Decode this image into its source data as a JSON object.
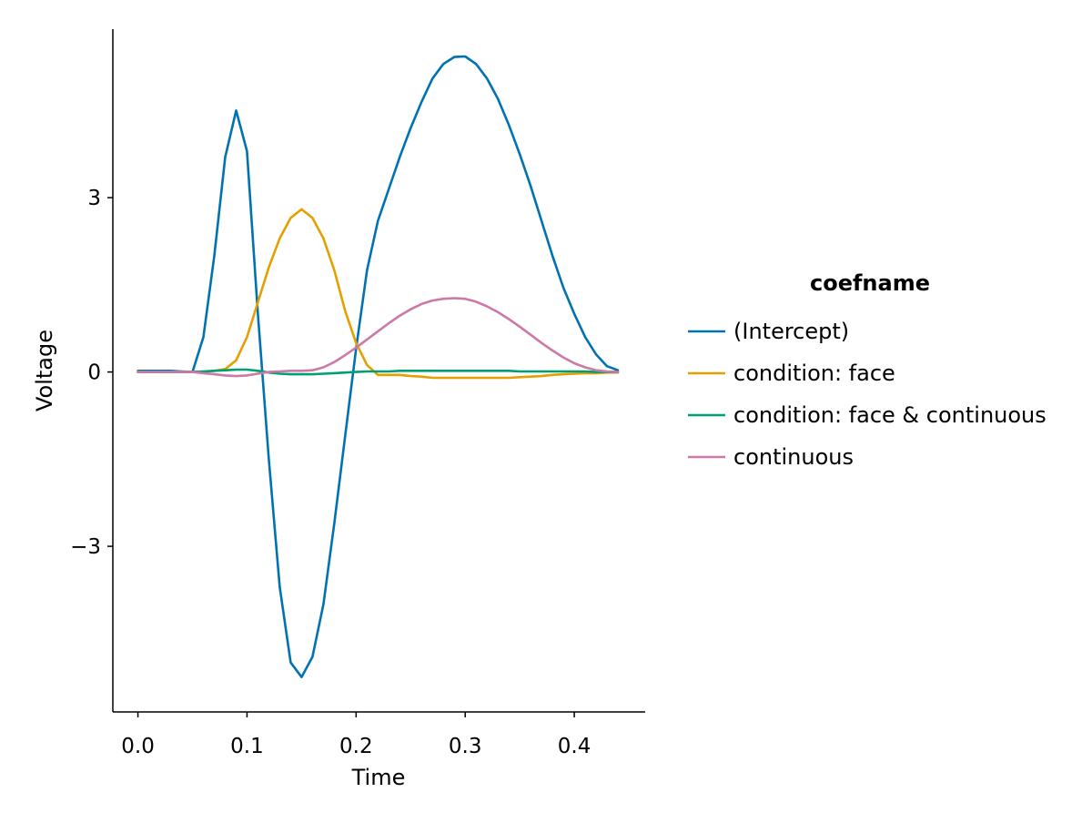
{
  "chart_data": {
    "type": "line",
    "xlabel": "Time",
    "ylabel": "Voltage",
    "xlim": [
      -0.023,
      0.465
    ],
    "ylim": [
      -5.85,
      5.9
    ],
    "xticks": [
      0.0,
      0.1,
      0.2,
      0.3,
      0.4
    ],
    "xtick_labels": [
      "0.0",
      "0.1",
      "0.2",
      "0.3",
      "0.4"
    ],
    "yticks": [
      -3,
      0,
      3
    ],
    "ytick_labels": [
      "−3",
      "0",
      "3"
    ],
    "grid": false,
    "legend": {
      "title": "coefname",
      "position": "right"
    },
    "x": [
      0.0,
      0.01,
      0.02,
      0.03,
      0.04,
      0.05,
      0.06,
      0.07,
      0.08,
      0.09,
      0.1,
      0.11,
      0.12,
      0.13,
      0.14,
      0.15,
      0.16,
      0.17,
      0.18,
      0.19,
      0.2,
      0.21,
      0.22,
      0.23,
      0.24,
      0.25,
      0.26,
      0.27,
      0.28,
      0.29,
      0.3,
      0.31,
      0.32,
      0.33,
      0.34,
      0.35,
      0.36,
      0.37,
      0.38,
      0.39,
      0.4,
      0.41,
      0.42,
      0.43,
      0.44
    ],
    "series": [
      {
        "name": "(Intercept)",
        "color": "#0072b2",
        "values": [
          0.02,
          0.02,
          0.02,
          0.02,
          0.01,
          0.0,
          0.6,
          2.0,
          3.7,
          4.5,
          3.8,
          1.0,
          -1.5,
          -3.7,
          -5.0,
          -5.25,
          -4.9,
          -4.0,
          -2.6,
          -1.1,
          0.4,
          1.75,
          2.6,
          3.15,
          3.7,
          4.2,
          4.65,
          5.05,
          5.3,
          5.42,
          5.43,
          5.3,
          5.05,
          4.7,
          4.25,
          3.75,
          3.2,
          2.6,
          2.0,
          1.45,
          1.0,
          0.6,
          0.3,
          0.1,
          0.03
        ]
      },
      {
        "name": "condition: face",
        "color": "#e69f00",
        "values": [
          0.0,
          0.0,
          0.0,
          0.0,
          0.0,
          0.0,
          0.0,
          0.02,
          0.05,
          0.2,
          0.6,
          1.2,
          1.8,
          2.3,
          2.65,
          2.8,
          2.65,
          2.3,
          1.75,
          1.05,
          0.5,
          0.12,
          -0.05,
          -0.05,
          -0.05,
          -0.07,
          -0.08,
          -0.1,
          -0.1,
          -0.1,
          -0.1,
          -0.1,
          -0.1,
          -0.1,
          -0.1,
          -0.09,
          -0.08,
          -0.07,
          -0.05,
          -0.04,
          -0.03,
          -0.02,
          -0.02,
          -0.01,
          -0.01
        ]
      },
      {
        "name": "condition: face & continuous",
        "color": "#009e73",
        "values": [
          0.0,
          0.0,
          0.0,
          0.0,
          0.0,
          0.0,
          0.01,
          0.02,
          0.03,
          0.04,
          0.04,
          0.02,
          -0.01,
          -0.03,
          -0.04,
          -0.04,
          -0.04,
          -0.03,
          -0.02,
          -0.01,
          0.0,
          0.01,
          0.01,
          0.01,
          0.02,
          0.02,
          0.02,
          0.02,
          0.02,
          0.02,
          0.02,
          0.02,
          0.02,
          0.02,
          0.02,
          0.01,
          0.01,
          0.01,
          0.01,
          0.01,
          0.01,
          0.01,
          0.0,
          0.0,
          0.0
        ]
      },
      {
        "name": "continuous",
        "color": "#cc79a7",
        "values": [
          0.0,
          0.0,
          0.0,
          0.0,
          0.0,
          0.0,
          -0.02,
          -0.04,
          -0.06,
          -0.07,
          -0.06,
          -0.03,
          0.0,
          0.01,
          0.02,
          0.02,
          0.03,
          0.08,
          0.17,
          0.29,
          0.42,
          0.56,
          0.7,
          0.84,
          0.97,
          1.08,
          1.17,
          1.23,
          1.26,
          1.27,
          1.26,
          1.21,
          1.13,
          1.03,
          0.91,
          0.78,
          0.64,
          0.5,
          0.37,
          0.25,
          0.15,
          0.08,
          0.03,
          0.01,
          0.0
        ]
      }
    ]
  }
}
